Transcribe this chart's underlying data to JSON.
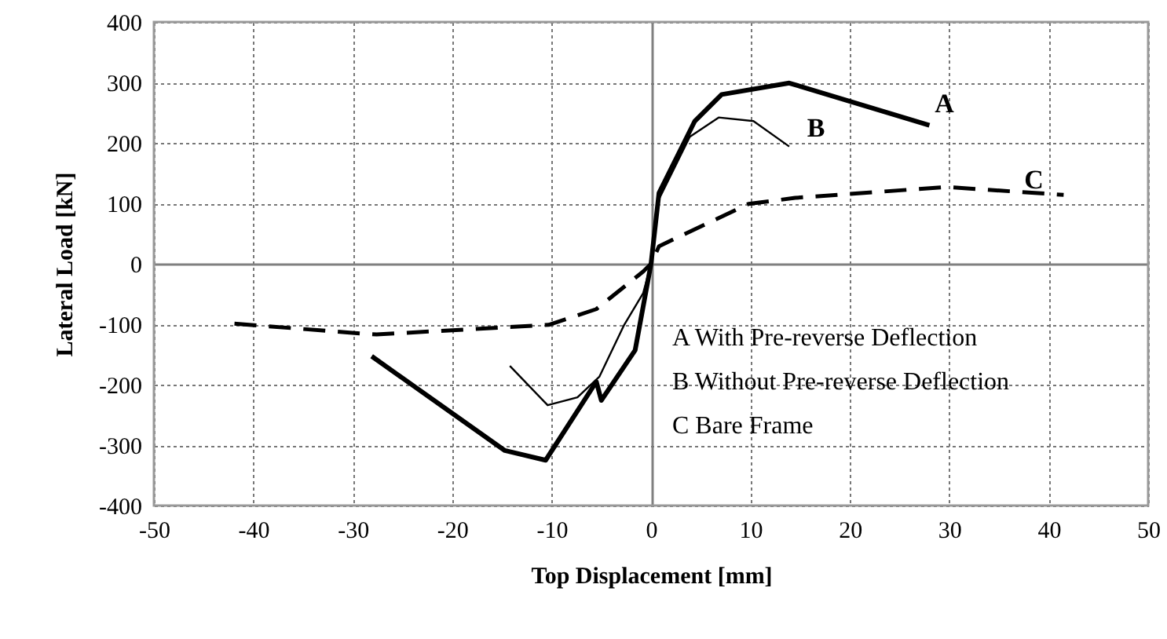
{
  "chart_data": {
    "type": "line",
    "xlabel": "Top Displacement [mm]",
    "ylabel": "Lateral Load [kN]",
    "xlim": [
      -50,
      50
    ],
    "xticks": [
      -50,
      -40,
      -30,
      -20,
      -10,
      0,
      10,
      20,
      30,
      40,
      50
    ],
    "ylim": [
      -400,
      400
    ],
    "yticks": [
      -400,
      -300,
      -200,
      -100,
      0,
      100,
      200,
      300,
      400
    ],
    "grid": true,
    "series": [
      {
        "color": "#000000",
        "line_style": "solid",
        "x": [
          -28.1,
          -14.7,
          -10.6,
          -5.5,
          -5.0,
          -1.6,
          0,
          0.8,
          4.4,
          7.1,
          13.9,
          28
        ],
        "values": [
          -153,
          -309,
          -325,
          -195,
          -226,
          -143,
          0,
          117,
          236,
          280,
          299,
          229
        ]
      },
      {
        "color": "#000000",
        "line_style": "solid",
        "x": [
          -14.2,
          -10.4,
          -7.4,
          -5.2,
          -2.7,
          -0.8,
          0,
          0.8,
          3.9,
          6.8,
          10.3,
          13.9
        ],
        "values": [
          -169,
          -234,
          -221,
          -187,
          -101,
          -49,
          0,
          107,
          210,
          242,
          236,
          194
        ]
      },
      {
        "color": "#000000",
        "line_style": "dashed",
        "x": [
          -41.9,
          -30.3,
          -27.6,
          -10.3,
          -5.5,
          -0.8,
          0,
          0.8,
          9.8,
          14.5,
          29.7,
          41.5
        ],
        "values": [
          -99,
          -114,
          -117,
          -101,
          -75,
          -13,
          0,
          29,
          99,
          109,
          127,
          114
        ]
      }
    ],
    "annotations": [
      "A",
      "B",
      "C",
      "A With Pre-reverse Deflection",
      "B Without Pre-reverse Deflection",
      "C Bare Frame"
    ]
  }
}
